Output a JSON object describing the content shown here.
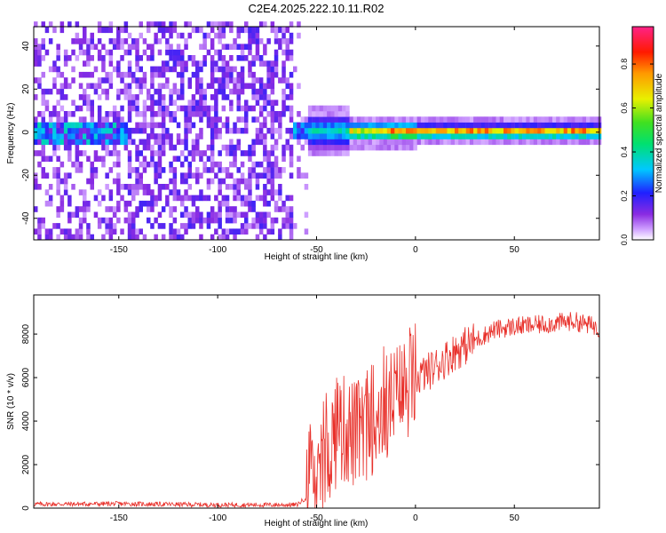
{
  "title": "C2E4.2025.222.10.11.R02",
  "chart_data": [
    {
      "type": "heatmap",
      "xlabel": "Height of straight line (km)",
      "ylabel": "Frequency (Hz)",
      "xlim": [
        -193,
        93
      ],
      "ylim": [
        -50,
        49
      ],
      "xticks": [
        -150,
        -100,
        -50,
        0,
        50
      ],
      "yticks": [
        -40,
        -20,
        0,
        20,
        40
      ],
      "colorbar": {
        "label": "Normalized spectral amplitude",
        "range": [
          0,
          0.97
        ],
        "ticks": [
          0.0,
          0.2,
          0.4,
          0.6,
          0.8
        ],
        "tick_labels": [
          "0.0",
          "0.2",
          "0.4",
          "0.6",
          "0.8"
        ]
      },
      "regions": [
        {
          "x": [
            -193,
            -147
          ],
          "description": "scattered noise speckle across all frequencies, narrow band near 0 Hz reaching ~0.4"
        },
        {
          "x": [
            -147,
            -63
          ],
          "description": "dense noise speckle across all frequencies"
        },
        {
          "x": [
            -63,
            -55
          ],
          "description": "sparse speckle, onset of signal band"
        },
        {
          "x": [
            -55,
            93
          ],
          "description": "narrow band centred near 0 Hz, amplitude rising to ~0.97"
        }
      ]
    },
    {
      "type": "line",
      "xlabel": "Height of straight line (km)",
      "ylabel": "SNR (10 * v/v)",
      "xlim": [
        -193,
        93
      ],
      "ylim": [
        0,
        9800
      ],
      "xticks": [
        -150,
        -100,
        -50,
        0,
        50
      ],
      "yticks": [
        0,
        2000,
        4000,
        6000,
        8000
      ],
      "color": "#e8302a",
      "envelope": {
        "x": [
          -193,
          -150,
          -100,
          -60,
          -55,
          -50,
          -45,
          -40,
          -35,
          -30,
          -25,
          -20,
          -15,
          -10,
          -5,
          0,
          5,
          10,
          20,
          30,
          40,
          50,
          60,
          70,
          80,
          93
        ],
        "y": [
          180,
          200,
          150,
          150,
          500,
          1200,
          2500,
          3500,
          3600,
          3300,
          3800,
          4200,
          4600,
          5000,
          5500,
          6000,
          6200,
          6500,
          7200,
          7700,
          8200,
          8350,
          8400,
          8500,
          8600,
          8300
        ]
      }
    }
  ]
}
